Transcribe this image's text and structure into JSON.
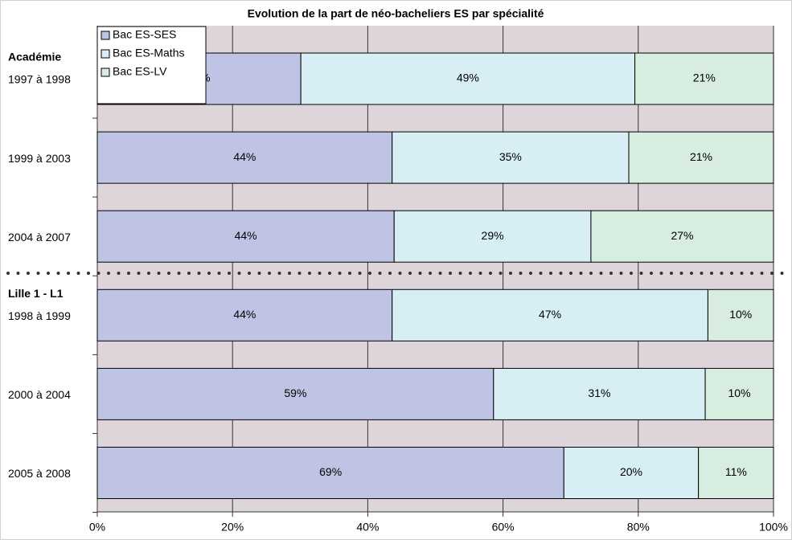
{
  "chart_data": {
    "type": "stacked_barh",
    "title": "Evolution de la part de néo-bacheliers ES par spécialité",
    "group_labels": [
      "Académie",
      "Lille 1 - L1"
    ],
    "categories": [
      "1997 à 1998",
      "1999 à 2003",
      "2004 à 2007",
      "1998 à 1999",
      "2000 à 2004",
      "2005 à 2008"
    ],
    "series": [
      {
        "name": "Bac ES-SES",
        "color": "#c0c4e4",
        "values": [
          30.1,
          43.6,
          43.9,
          43.6,
          58.6,
          69.0
        ],
        "value_labels": [
          "30%",
          "44%",
          "44%",
          "44%",
          "59%",
          "69%"
        ]
      },
      {
        "name": "Bac ES-Maths",
        "color": "#d6eef4",
        "values": [
          49.4,
          35.0,
          29.1,
          46.7,
          31.3,
          19.9
        ],
        "value_labels": [
          "49%",
          "35%",
          "29%",
          "47%",
          "31%",
          "20%"
        ]
      },
      {
        "name": "Bac ES-LV",
        "color": "#d6ede0",
        "values": [
          20.5,
          21.4,
          27.0,
          9.7,
          10.1,
          11.1
        ],
        "value_labels": [
          "21%",
          "21%",
          "27%",
          "10%",
          "10%",
          "11%"
        ]
      }
    ],
    "xlim": [
      0,
      100
    ],
    "xticks": [
      {
        "value": 0,
        "label": "0%"
      },
      {
        "value": 20,
        "label": "20%"
      },
      {
        "value": 40,
        "label": "40%"
      },
      {
        "value": 60,
        "label": "60%"
      },
      {
        "value": 80,
        "label": "80%"
      },
      {
        "value": 100,
        "label": "100%"
      }
    ],
    "grid": true,
    "legend": "top-left"
  }
}
